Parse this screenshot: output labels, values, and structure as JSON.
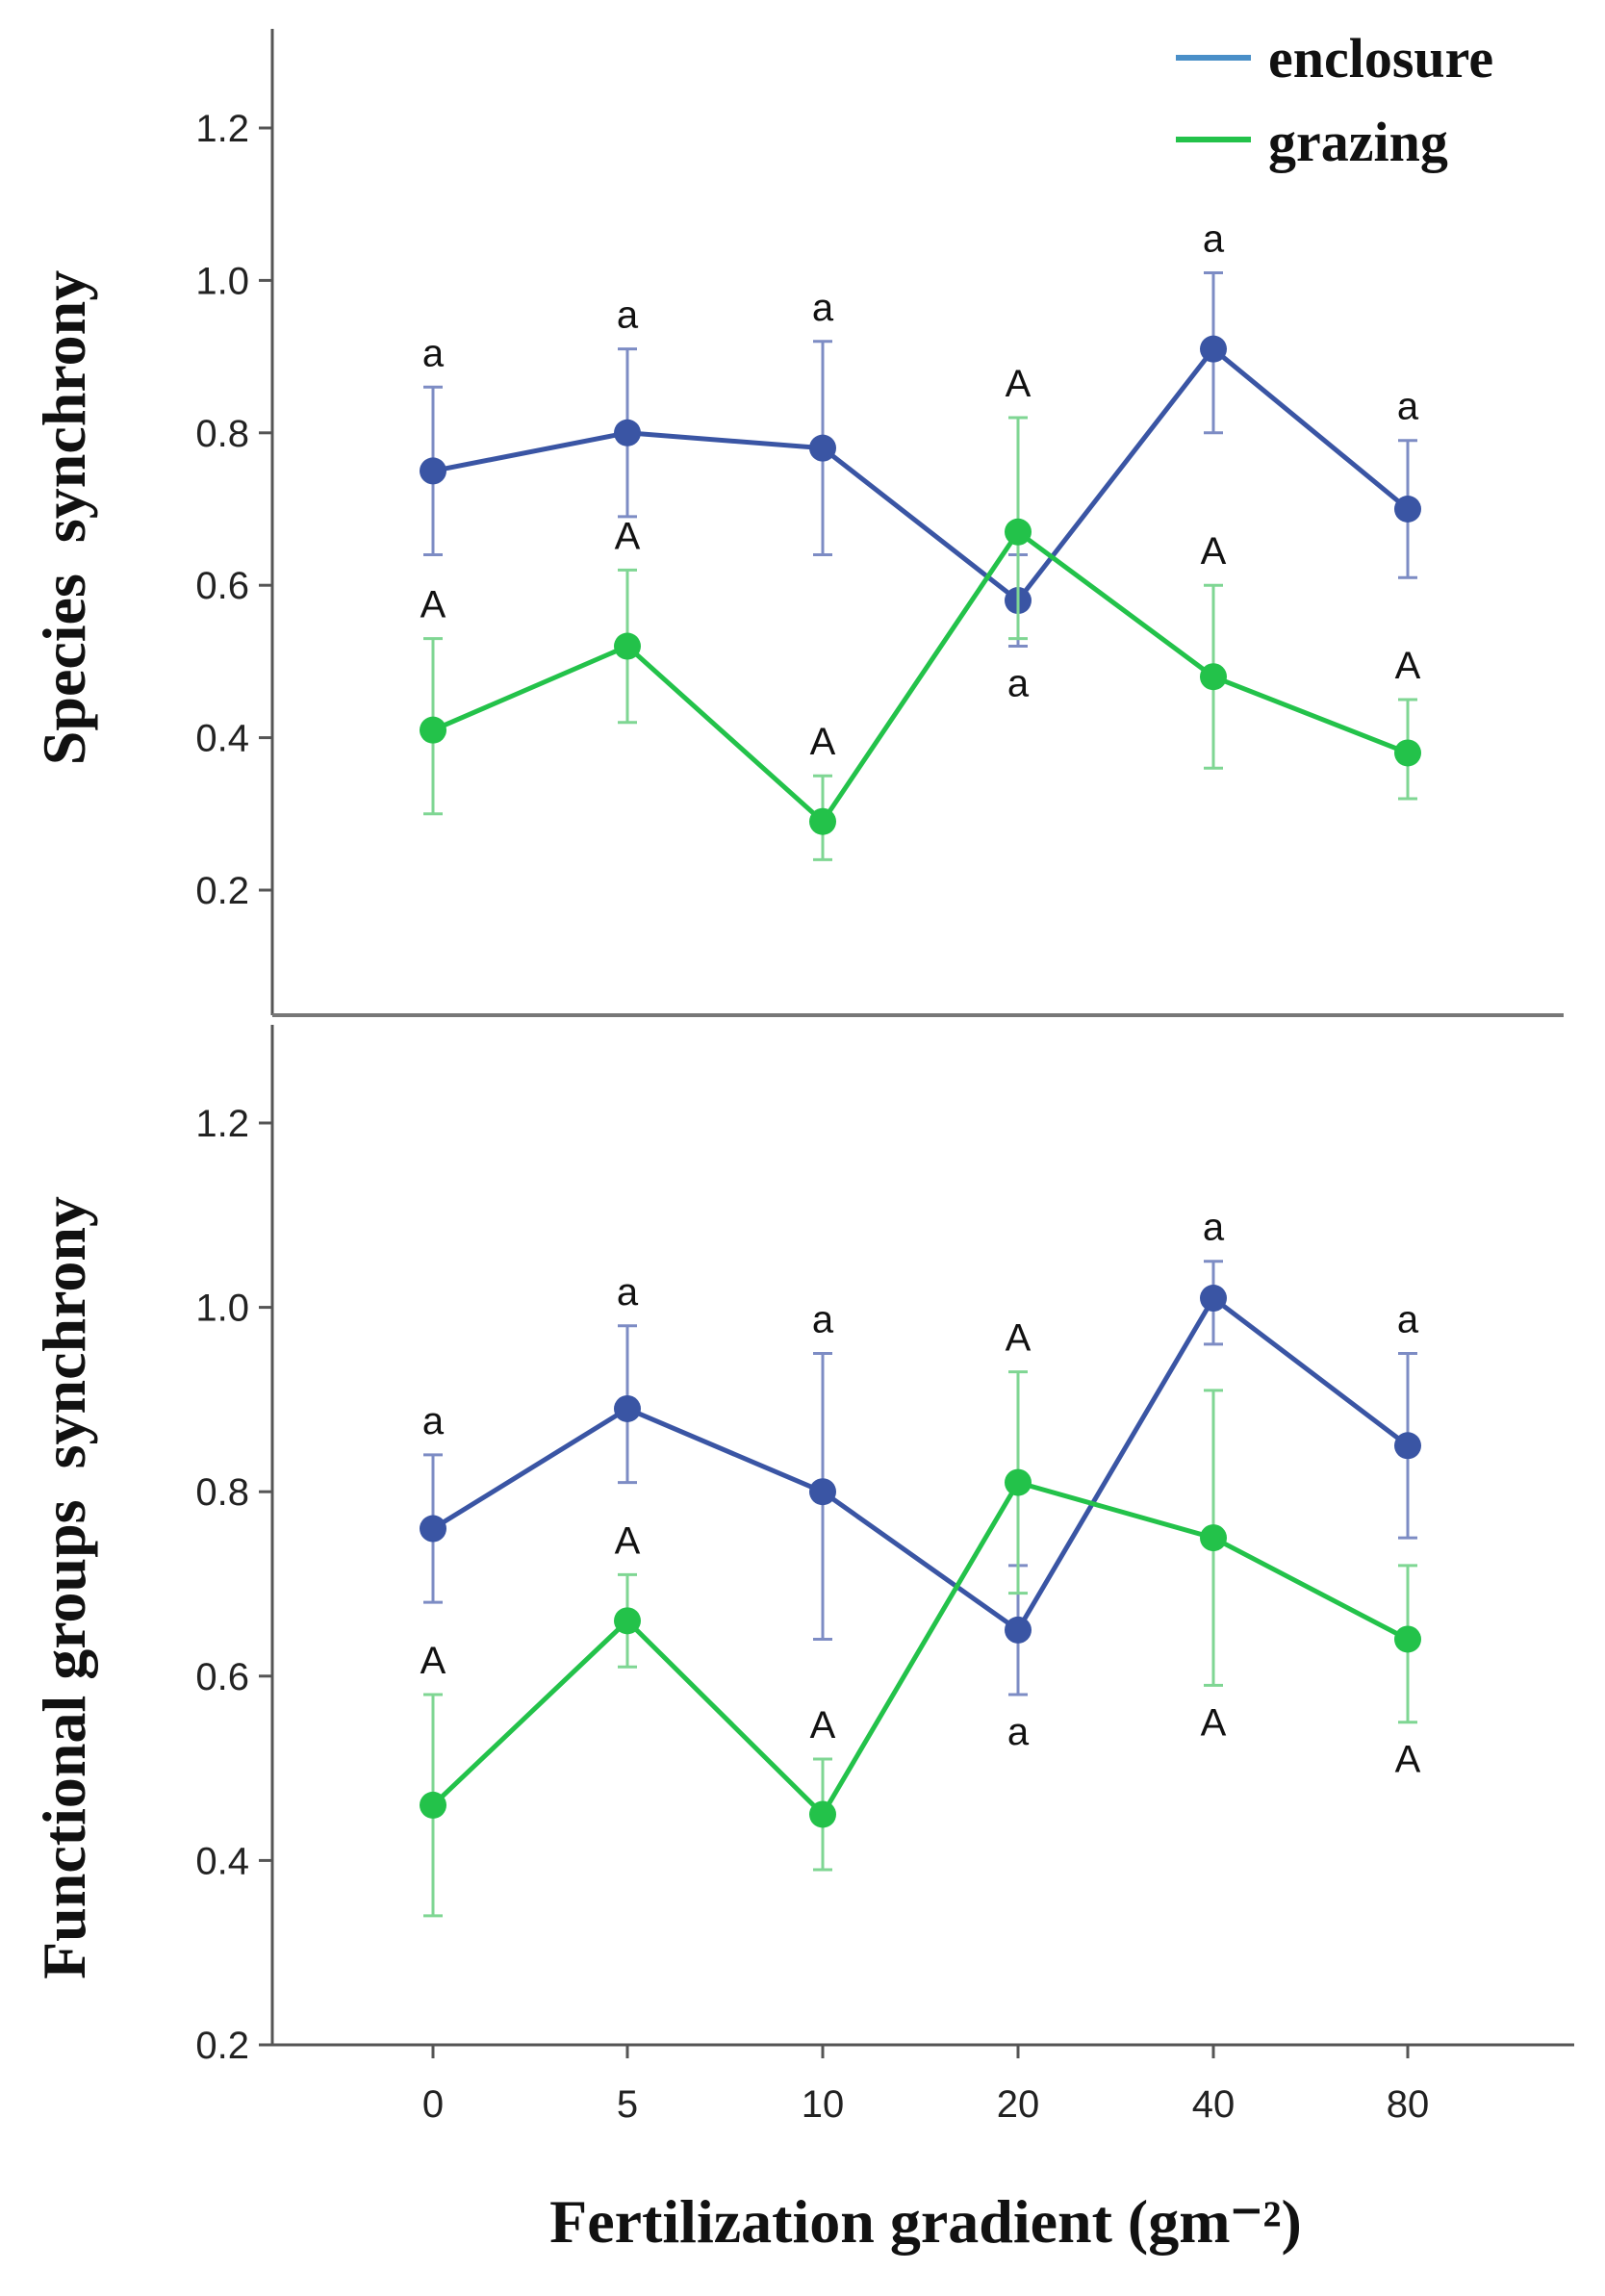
{
  "colors": {
    "enclosure": "#3a55a4",
    "enclosure_legend": "#4a8fc8",
    "grazing": "#23c24a",
    "axis": "#555555"
  },
  "legend": {
    "enclosure": "enclosure",
    "grazing": "grazing"
  },
  "chart_data": [
    {
      "type": "line",
      "title": "",
      "xlabel": "Fertilization gradient (gm⁻²)",
      "ylabel": "Species  synchrony",
      "categories": [
        "0",
        "5",
        "10",
        "20",
        "40",
        "80"
      ],
      "yticks": [
        0.2,
        0.4,
        0.6,
        0.8,
        1.0,
        1.2
      ],
      "ytick_labels": [
        "0.2",
        "0.4",
        "0.6",
        "0.8",
        "1.0",
        "1.2"
      ],
      "ylim": [
        0.05,
        1.33
      ],
      "series": [
        {
          "name": "enclosure",
          "values": [
            0.75,
            0.8,
            0.78,
            0.58,
            0.91,
            0.7
          ],
          "err_low": [
            0.64,
            0.69,
            0.64,
            0.52,
            0.8,
            0.61
          ],
          "err_high": [
            0.86,
            0.91,
            0.92,
            0.64,
            1.01,
            0.79
          ],
          "labels": [
            "a",
            "a",
            "a",
            "a",
            "a",
            "a"
          ],
          "label_pos": [
            "above",
            "above",
            "above",
            "below",
            "above",
            "above"
          ]
        },
        {
          "name": "grazing",
          "values": [
            0.41,
            0.52,
            0.29,
            0.67,
            0.48,
            0.38
          ],
          "err_low": [
            0.3,
            0.42,
            0.24,
            0.53,
            0.36,
            0.32
          ],
          "err_high": [
            0.53,
            0.62,
            0.35,
            0.82,
            0.6,
            0.45
          ],
          "labels": [
            "A",
            "A",
            "A",
            "A",
            "A",
            "A"
          ],
          "label_pos": [
            "above",
            "above",
            "above",
            "above",
            "above",
            "above"
          ]
        }
      ]
    },
    {
      "type": "line",
      "title": "",
      "xlabel": "Fertilization gradient (gm⁻²)",
      "ylabel": "Functional groups  synchrony",
      "categories": [
        "0",
        "5",
        "10",
        "20",
        "40",
        "80"
      ],
      "yticks": [
        0.2,
        0.4,
        0.6,
        0.8,
        1.0,
        1.2
      ],
      "ytick_labels": [
        "0.2",
        "0.4",
        "0.6",
        "0.8",
        "1.0",
        "1.2"
      ],
      "ylim": [
        0.2,
        1.3
      ],
      "series": [
        {
          "name": "enclosure",
          "values": [
            0.76,
            0.89,
            0.8,
            0.65,
            1.01,
            0.85
          ],
          "err_low": [
            0.68,
            0.81,
            0.64,
            0.58,
            0.96,
            0.75
          ],
          "err_high": [
            0.84,
            0.98,
            0.95,
            0.72,
            1.05,
            0.95
          ],
          "labels": [
            "a",
            "a",
            "a",
            "a",
            "a",
            "a"
          ],
          "label_pos": [
            "above",
            "above",
            "above",
            "below",
            "above",
            "above"
          ]
        },
        {
          "name": "grazing",
          "values": [
            0.46,
            0.66,
            0.45,
            0.81,
            0.75,
            0.64
          ],
          "err_low": [
            0.34,
            0.61,
            0.39,
            0.69,
            0.59,
            0.55
          ],
          "err_high": [
            0.58,
            0.71,
            0.51,
            0.93,
            0.91,
            0.72
          ],
          "labels": [
            "A",
            "A",
            "A",
            "A",
            "A",
            "A"
          ],
          "label_pos": [
            "above",
            "above",
            "above",
            "above",
            "below",
            "below"
          ]
        }
      ]
    }
  ]
}
